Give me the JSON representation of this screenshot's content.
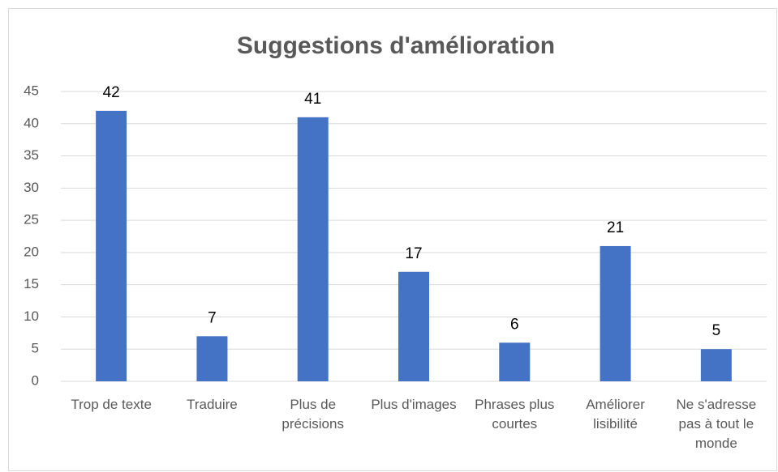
{
  "chart_data": {
    "type": "bar",
    "title": "Suggestions d'amélioration",
    "categories": [
      "Trop de texte",
      "Traduire",
      "Plus de précisions",
      "Plus d'images",
      "Phrases plus courtes",
      "Améliorer lisibilité",
      "Ne s'adresse pas à tout le monde"
    ],
    "values": [
      42,
      7,
      41,
      17,
      6,
      21,
      5
    ],
    "color": "#4472c4",
    "ylim": [
      0,
      45
    ],
    "yticks": [
      0,
      5,
      10,
      15,
      20,
      25,
      30,
      35,
      40,
      45
    ],
    "grid": true
  }
}
